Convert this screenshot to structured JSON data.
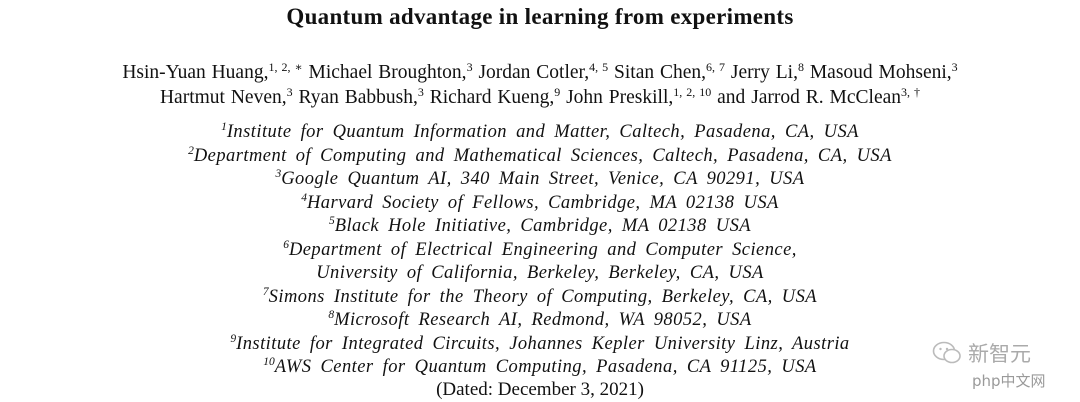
{
  "header": {
    "title": "Quantum advantage in learning from experiments"
  },
  "author_lines": [
    [
      {
        "name": "Hsin-Yuan Huang,",
        "sup": "1, 2, ∗"
      },
      {
        "name": "Michael Broughton,",
        "sup": "3"
      },
      {
        "name": "Jordan Cotler,",
        "sup": "4, 5"
      },
      {
        "name": "Sitan Chen,",
        "sup": "6, 7"
      },
      {
        "name": "Jerry Li,",
        "sup": "8"
      },
      {
        "name": "Masoud Mohseni,",
        "sup": "3"
      }
    ],
    [
      {
        "name": "Hartmut Neven,",
        "sup": "3"
      },
      {
        "name": "Ryan Babbush,",
        "sup": "3"
      },
      {
        "name": "Richard Kueng,",
        "sup": "9"
      },
      {
        "name": "John Preskill,",
        "sup": "1, 2, 10"
      },
      {
        "name": "and"
      },
      {
        "name": "Jarrod R. McClean",
        "sup": "3, †"
      }
    ]
  ],
  "affiliations": [
    {
      "sup": "1",
      "lines": [
        "Institute for Quantum Information and Matter, Caltech, Pasadena, CA, USA"
      ]
    },
    {
      "sup": "2",
      "lines": [
        "Department of Computing and Mathematical Sciences, Caltech, Pasadena, CA, USA"
      ]
    },
    {
      "sup": "3",
      "lines": [
        "Google Quantum AI, 340 Main Street, Venice, CA 90291, USA"
      ]
    },
    {
      "sup": "4",
      "lines": [
        "Harvard Society of Fellows, Cambridge, MA 02138 USA"
      ]
    },
    {
      "sup": "5",
      "lines": [
        "Black Hole Initiative, Cambridge, MA 02138 USA"
      ]
    },
    {
      "sup": "6",
      "lines": [
        "Department of Electrical Engineering and Computer Science,",
        "University of California, Berkeley, Berkeley, CA, USA"
      ]
    },
    {
      "sup": "7",
      "lines": [
        "Simons Institute for the Theory of Computing, Berkeley, CA, USA"
      ]
    },
    {
      "sup": "8",
      "lines": [
        "Microsoft Research AI, Redmond, WA 98052, USA"
      ]
    },
    {
      "sup": "9",
      "lines": [
        "Institute for Integrated Circuits, Johannes Kepler University Linz, Austria"
      ]
    },
    {
      "sup": "10",
      "lines": [
        "AWS Center for Quantum Computing, Pasadena, CA 91125, USA"
      ]
    }
  ],
  "date": "(Dated: December 3, 2021)",
  "watermarks": [
    "新智元",
    "php中文网"
  ]
}
